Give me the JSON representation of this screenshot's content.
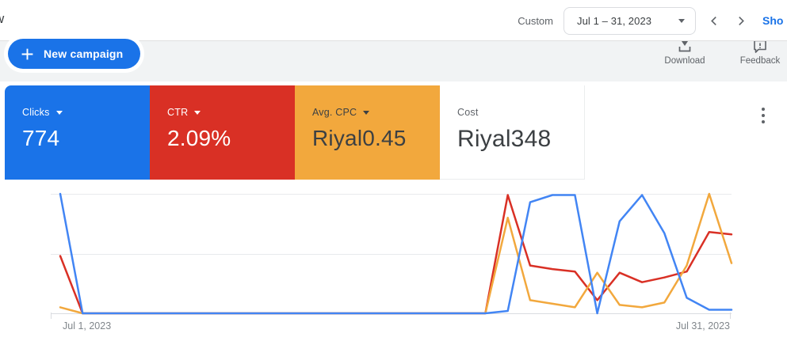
{
  "topbar": {
    "page_fragment": "w",
    "date_range_label": "Custom",
    "date_range_value": "Jul 1 – 31, 2023",
    "show_link": "Sho"
  },
  "toolbar": {
    "new_campaign_label": "New campaign",
    "download_label": "Download",
    "feedback_label": "Feedback"
  },
  "scorecards": [
    {
      "id": "clicks",
      "label": "Clicks",
      "value": "774",
      "bg": "#1a73e8",
      "text": "#ffffff",
      "has_dropdown": true
    },
    {
      "id": "ctr",
      "label": "CTR",
      "value": "2.09%",
      "bg": "#d93025",
      "text": "#ffffff",
      "has_dropdown": true
    },
    {
      "id": "avg_cpc",
      "label": "Avg. CPC",
      "value": "Riyal0.45",
      "bg": "#f2a83d",
      "text": "#3c4043",
      "has_dropdown": true
    },
    {
      "id": "cost",
      "label": "Cost",
      "value": "Riyal348",
      "bg": "#ffffff",
      "text": "#3c4043",
      "has_dropdown": false
    }
  ],
  "chart_data": {
    "type": "line",
    "title": "",
    "legend": "none",
    "grid": "horizontal",
    "x_axis": {
      "left_label": "Jul 1, 2023",
      "right_label": "Jul 31, 2023",
      "unit": "day",
      "range": [
        1,
        31
      ]
    },
    "y_axis": {
      "labels_visible": false,
      "scale": "normalized 0-100 of plot height per metric"
    },
    "x": [
      1,
      2,
      3,
      4,
      5,
      6,
      7,
      8,
      9,
      10,
      11,
      12,
      13,
      14,
      15,
      16,
      17,
      18,
      19,
      20,
      21,
      22,
      23,
      24,
      25,
      26,
      27,
      28,
      29,
      30,
      31
    ],
    "series": [
      {
        "id": "ctr",
        "name": "CTR",
        "color": "#d93025",
        "values": [
          48,
          0,
          0,
          0,
          0,
          0,
          0,
          0,
          0,
          0,
          0,
          0,
          0,
          0,
          0,
          0,
          0,
          0,
          0,
          0,
          99,
          40,
          37,
          35,
          11,
          34,
          26,
          30,
          35,
          68,
          66
        ]
      },
      {
        "id": "avg_cpc",
        "name": "Avg. CPC",
        "color": "#f2a83d",
        "values": [
          5,
          0,
          0,
          0,
          0,
          0,
          0,
          0,
          0,
          0,
          0,
          0,
          0,
          0,
          0,
          0,
          0,
          0,
          0,
          0,
          80,
          11,
          8,
          5,
          34,
          7,
          5,
          9,
          40,
          100,
          42
        ]
      },
      {
        "id": "clicks",
        "name": "Clicks",
        "color": "#4285f4",
        "values": [
          100,
          0,
          0,
          0,
          0,
          0,
          0,
          0,
          0,
          0,
          0,
          0,
          0,
          0,
          0,
          0,
          0,
          0,
          0,
          0,
          2,
          93,
          99,
          99,
          0,
          77,
          99,
          67,
          13,
          3,
          3
        ]
      }
    ]
  }
}
